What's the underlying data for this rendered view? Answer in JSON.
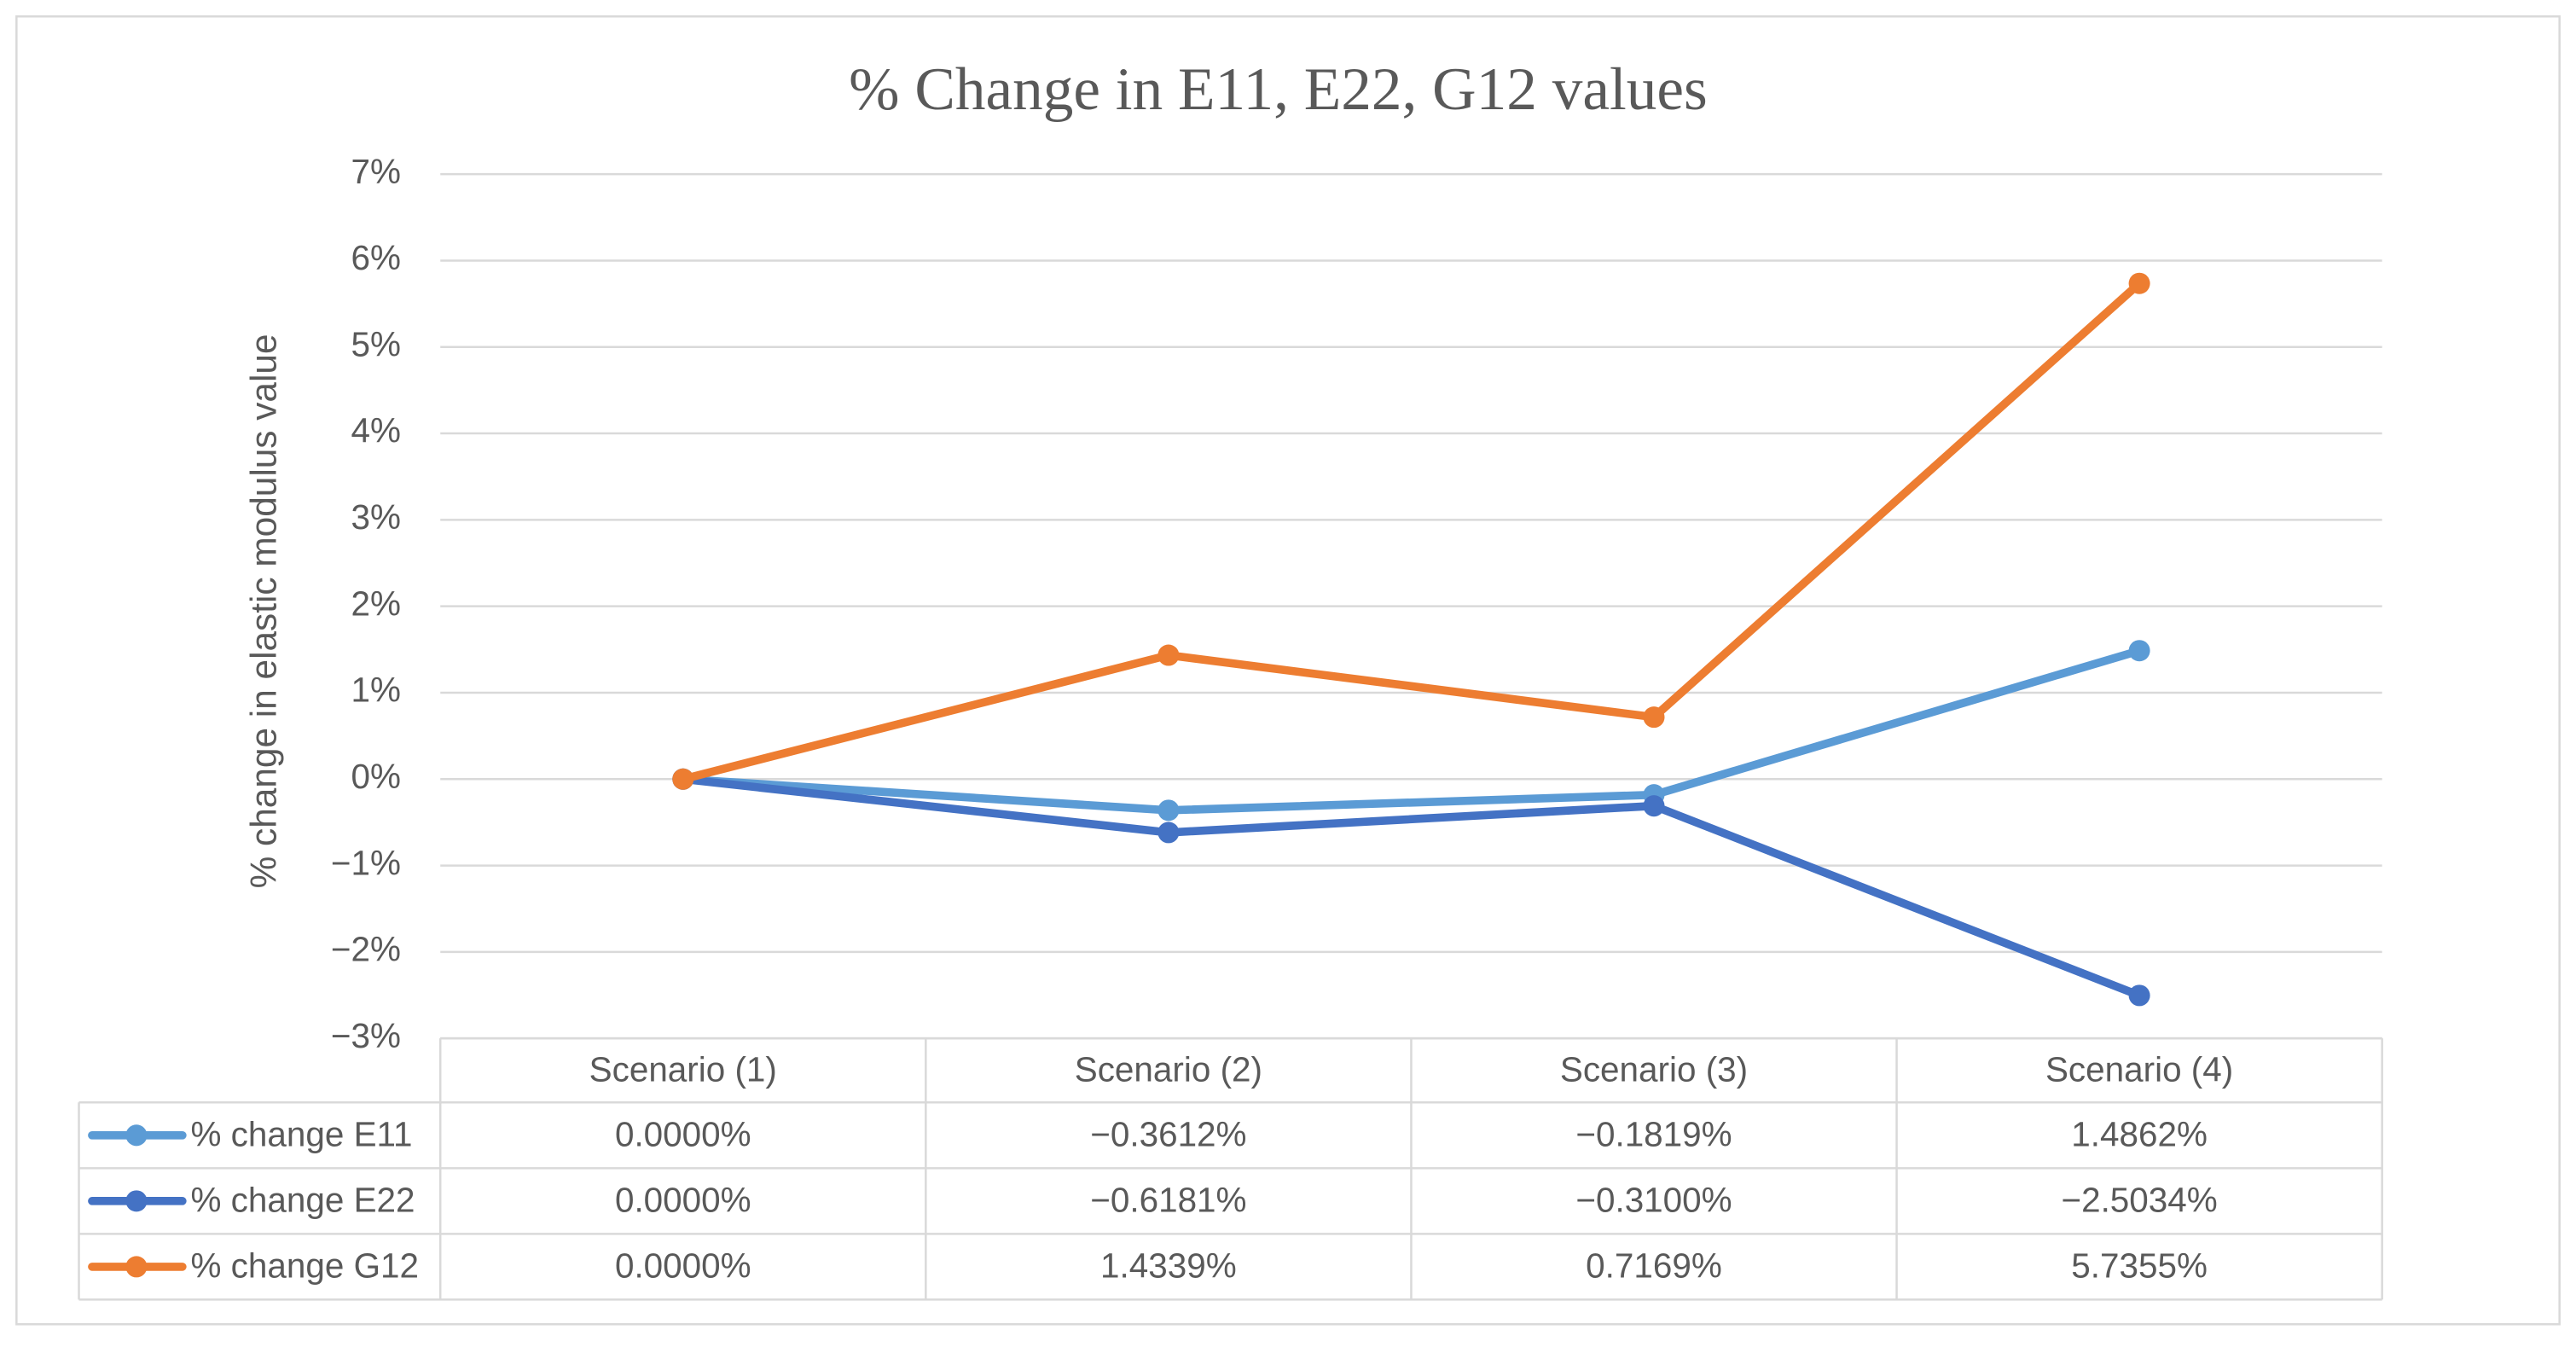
{
  "chart_data": {
    "type": "line",
    "title": "% Change in E11, E22, G12 values",
    "y_label": "% change in elastic modulus value",
    "categories": [
      "Scenario (1)",
      "Scenario (2)",
      "Scenario (3)",
      "Scenario (4)"
    ],
    "series": [
      {
        "name": "% change E11",
        "color": "#5b9bd5",
        "values": [
          0,
          -0.3612,
          -0.1819,
          1.4862
        ],
        "value_labels": [
          "0.0000%",
          "−0.3612%",
          "−0.1819%",
          "1.4862%"
        ]
      },
      {
        "name": "% change E22",
        "color": "#4472c4",
        "values": [
          0,
          -0.6181,
          -0.31,
          -2.5034
        ],
        "value_labels": [
          "0.0000%",
          "−0.6181%",
          "−0.3100%",
          "−2.5034%"
        ]
      },
      {
        "name": "% change G12",
        "color": "#ed7d31",
        "values": [
          0,
          1.4339,
          0.7169,
          5.7355
        ],
        "value_labels": [
          "0.0000%",
          "1.4339%",
          "0.7169%",
          "5.7355%"
        ]
      }
    ],
    "ylim": [
      -3,
      7
    ],
    "yticks": [
      {
        "value": -3,
        "label": "−3%"
      },
      {
        "value": -2,
        "label": "−2%"
      },
      {
        "value": -1,
        "label": "−1%"
      },
      {
        "value": 0,
        "label": "0%"
      },
      {
        "value": 1,
        "label": "1%"
      },
      {
        "value": 2,
        "label": "2%"
      },
      {
        "value": 3,
        "label": "3%"
      },
      {
        "value": 4,
        "label": "4%"
      },
      {
        "value": 5,
        "label": "5%"
      },
      {
        "value": 6,
        "label": "6%"
      },
      {
        "value": 7,
        "label": "7%"
      }
    ],
    "grid": true
  }
}
